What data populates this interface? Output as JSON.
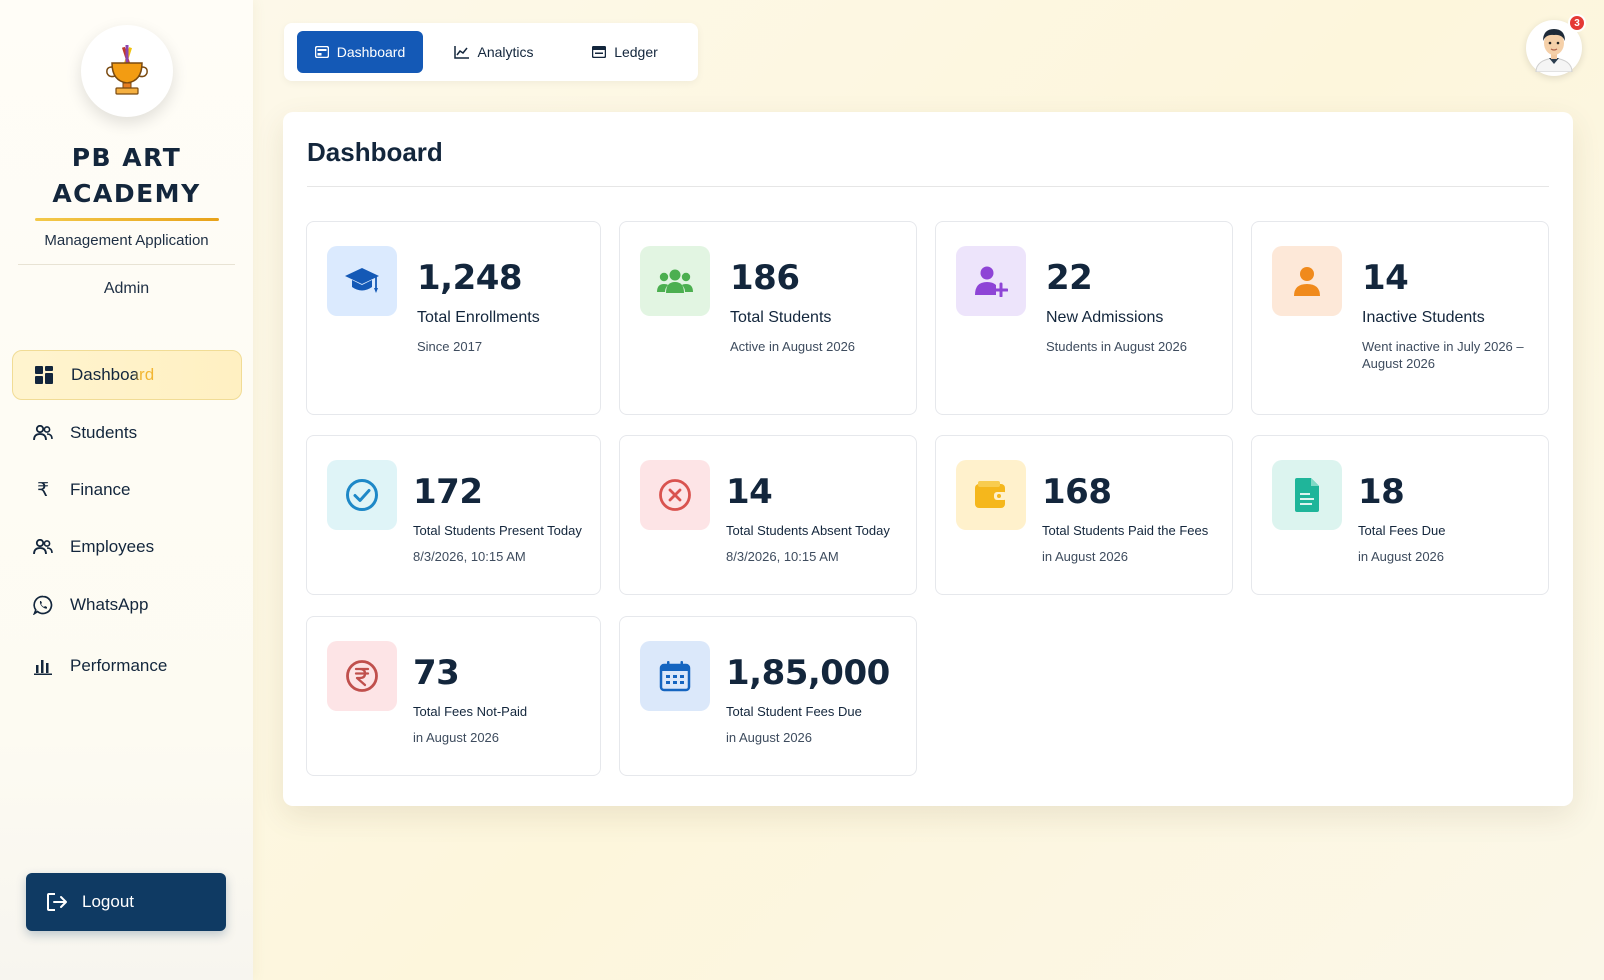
{
  "sidebar": {
    "brand_line1": "PB ART",
    "brand_line2": "ACADEMY",
    "subtitle": "Management Application",
    "role": "Admin",
    "items": [
      {
        "label": "Dashboard",
        "icon": "dashboard-grid-icon",
        "active": true
      },
      {
        "label": "Students",
        "icon": "users-icon"
      },
      {
        "label": "Finance",
        "icon": "rupee-icon"
      },
      {
        "label": "Employees",
        "icon": "users-icon"
      },
      {
        "label": "WhatsApp",
        "icon": "whatsapp-icon"
      },
      {
        "label": "Performance",
        "icon": "bar-chart-icon"
      }
    ],
    "logout_label": "Logout"
  },
  "tabs": [
    {
      "label": "Dashboard",
      "icon": "dashboard-icon",
      "active": true
    },
    {
      "label": "Analytics",
      "icon": "line-chart-icon"
    },
    {
      "label": "Ledger",
      "icon": "ledger-icon"
    }
  ],
  "notifications": {
    "count": "3"
  },
  "main": {
    "title": "Dashboard",
    "cards": [
      {
        "value": "1,248",
        "label": "Total Enrollments",
        "sub": "Since 2017",
        "icon": "graduation-cap-icon",
        "tint": "#dbeafe",
        "color": "#1459b6"
      },
      {
        "value": "186",
        "label": "Total Students",
        "sub": "Active in August 2026",
        "icon": "group-icon",
        "tint": "#e2f5e2",
        "color": "#4caf50"
      },
      {
        "value": "22",
        "label": "New Admissions",
        "sub": "Students in August 2026",
        "icon": "add-user-icon",
        "tint": "#ede4fb",
        "color": "#8e44d6"
      },
      {
        "value": "14",
        "label": "Inactive Students",
        "sub": "Went inactive in July 2026 – August 2026",
        "icon": "person-icon",
        "tint": "#fde8d8",
        "color": "#f08a1c"
      },
      {
        "value": "172",
        "label": "Total Students Present Today",
        "sub": "8/3/2026, 10:15 AM",
        "icon": "check-circle-icon",
        "tint": "#dff4f7",
        "color": "#1e88c7"
      },
      {
        "value": "14",
        "label": "Total Students Absent Today",
        "sub": "8/3/2026, 10:15 AM",
        "icon": "x-circle-icon",
        "tint": "#fde4e6",
        "color": "#d9534f"
      },
      {
        "value": "168",
        "label": "Total Students Paid the Fees",
        "sub": "in August 2026",
        "icon": "wallet-icon",
        "tint": "#fff1cc",
        "color": "#f5b71c"
      },
      {
        "value": "18",
        "label": "Total Fees Due",
        "sub": "in August 2026",
        "icon": "document-icon",
        "tint": "#dcf4ef",
        "color": "#1fb59a"
      },
      {
        "value": "73",
        "label": "Total Fees Not-Paid",
        "sub": "in August 2026",
        "icon": "rupee-circle-icon",
        "tint": "#fde4e6",
        "color": "#c0504d"
      },
      {
        "value": "1,85,000",
        "label": "Total Student Fees Due",
        "sub": "in August 2026",
        "icon": "calendar-icon",
        "tint": "#dbe8fa",
        "color": "#1565c0"
      }
    ]
  }
}
